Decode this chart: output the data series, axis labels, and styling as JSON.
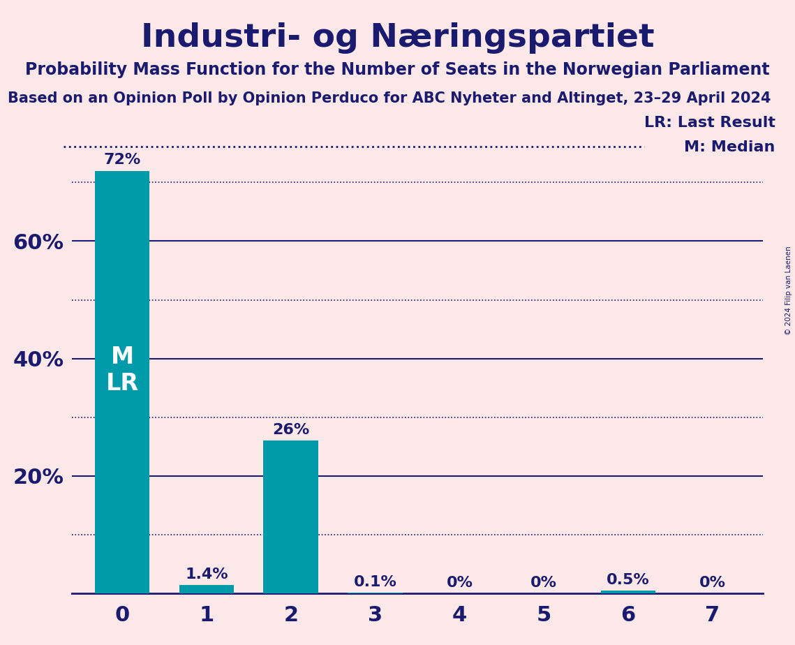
{
  "title": "Industri- og Næringspartiet",
  "subtitle": "Probability Mass Function for the Number of Seats in the Norwegian Parliament",
  "subsubtitle": "Based on an Opinion Poll by Opinion Perduco for ABC Nyheter and Altinget, 23–29 April 2024",
  "copyright": "© 2024 Filip van Laenen",
  "categories": [
    0,
    1,
    2,
    3,
    4,
    5,
    6,
    7
  ],
  "values": [
    72.0,
    1.4,
    26.0,
    0.1,
    0.0,
    0.0,
    0.5,
    0.0
  ],
  "bar_color": "#009aaa",
  "background_color": "#fce8e8",
  "text_color": "#1a1a6e",
  "ylabel_ticks": [
    20,
    40,
    60
  ],
  "solid_lines": [
    20,
    40,
    60
  ],
  "dotted_lines": [
    10,
    30,
    50,
    70
  ],
  "median": 0,
  "last_result": 0,
  "legend_lr": "LR: Last Result",
  "legend_m": "M: Median",
  "bar_labels": [
    "72%",
    "1.4%",
    "26%",
    "0.1%",
    "0%",
    "0%",
    "0.5%",
    "0%"
  ]
}
